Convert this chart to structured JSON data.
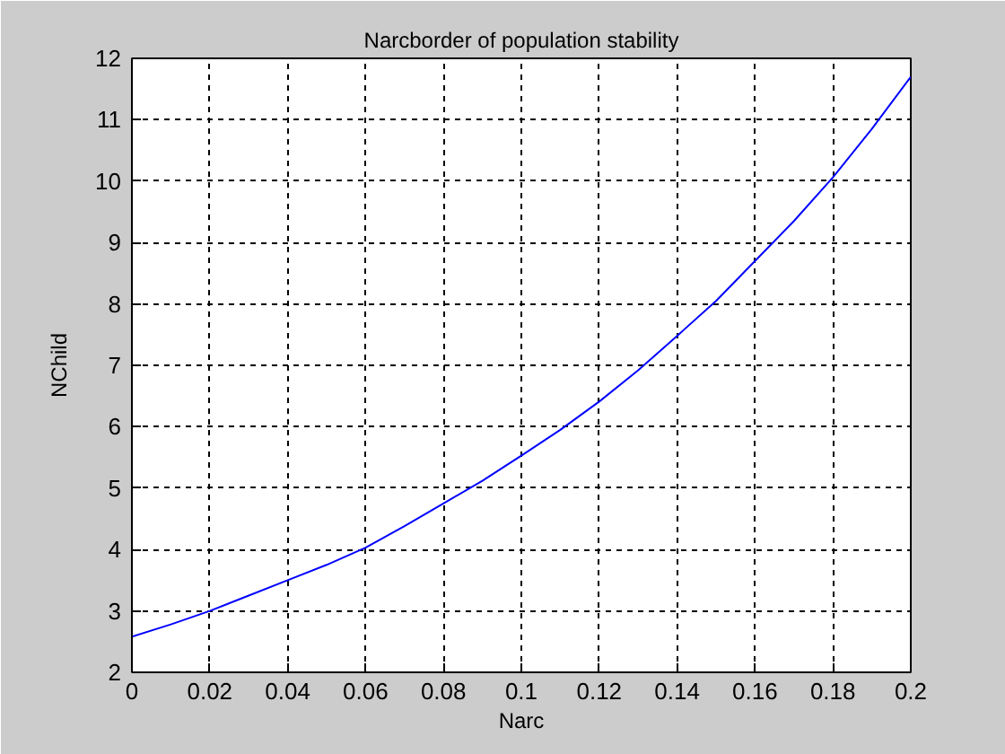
{
  "chart_data": {
    "type": "line",
    "title": "Narcborder of population stability",
    "xlabel": "Narc",
    "ylabel": "NChild",
    "x": [
      0,
      0.01,
      0.02,
      0.03,
      0.04,
      0.05,
      0.06,
      0.07,
      0.08,
      0.09,
      0.1,
      0.11,
      0.12,
      0.13,
      0.14,
      0.15,
      0.16,
      0.17,
      0.18,
      0.19,
      0.2
    ],
    "series": [
      {
        "color": "#0000ff",
        "values": [
          2.58,
          2.78,
          3.0,
          3.25,
          3.5,
          3.75,
          4.03,
          4.38,
          4.75,
          5.12,
          5.53,
          5.95,
          6.41,
          6.92,
          7.48,
          8.05,
          8.7,
          9.35,
          10.06,
          10.85,
          11.7
        ]
      }
    ],
    "xlim": [
      0,
      0.2
    ],
    "ylim": [
      2,
      12
    ],
    "xticks": [
      0,
      0.02,
      0.04,
      0.06,
      0.08,
      0.1,
      0.12,
      0.14,
      0.16,
      0.18,
      0.2
    ],
    "yticks": [
      2,
      3,
      4,
      5,
      6,
      7,
      8,
      9,
      10,
      11,
      12
    ],
    "grid": true
  }
}
